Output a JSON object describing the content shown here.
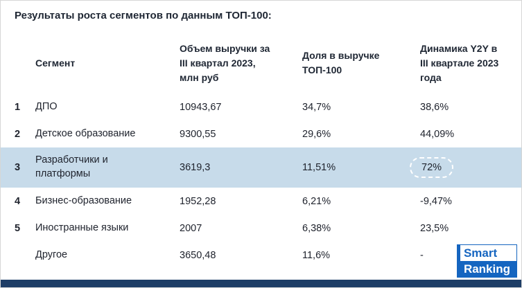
{
  "title": "Результаты роста сегментов по данным ТОП-100:",
  "chart_data": {
    "type": "table",
    "title": "Результаты роста сегментов по данным ТОП-100:",
    "headers": {
      "segment": "Сегмент",
      "revenue": "Объем выручки за III квартал 2023, млн руб",
      "share": "Доля в выручке ТОП-100",
      "dynamics": "Динамика Y2Y в III квартале 2023 года"
    },
    "rows": [
      {
        "num": "1",
        "segment": "ДПО",
        "revenue": "10943,67",
        "share": "34,7%",
        "dynamics": "38,6%"
      },
      {
        "num": "2",
        "segment": "Детское образование",
        "revenue": "9300,55",
        "share": "29,6%",
        "dynamics": "44,09%"
      },
      {
        "num": "3",
        "segment": "Разработчики и платформы",
        "revenue": "3619,3",
        "share": "11,51%",
        "dynamics": "72%"
      },
      {
        "num": "4",
        "segment": "Бизнес-образование",
        "revenue": "1952,28",
        "share": "6,21%",
        "dynamics": "-9,47%"
      },
      {
        "num": "5",
        "segment": "Иностранные языки",
        "revenue": "2007",
        "share": "6,38%",
        "dynamics": "23,5%"
      },
      {
        "num": "",
        "segment": "Другое",
        "revenue": "3650,48",
        "share": "11,6%",
        "dynamics": "-"
      }
    ],
    "highlighted_row_index": 2,
    "annotation": "dashed ellipse around 72% value in highlighted row"
  },
  "logo": {
    "line1": "Smart",
    "line2": "Ranking"
  },
  "colors": {
    "highlight_row": "#c7dbea",
    "footer_bar": "#1d3d66",
    "logo_blue": "#1565c0",
    "text": "#20242e"
  }
}
